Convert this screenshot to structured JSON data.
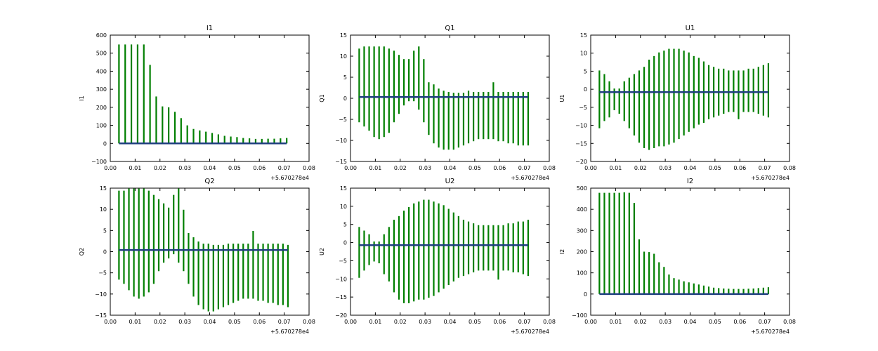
{
  "figure": {
    "background": "#ffffff",
    "bar_color": "#007f00",
    "line_color": "#1f3f7f"
  },
  "chart_data": [
    {
      "type": "errorbar",
      "title": "I1",
      "ylabel": "I1",
      "x_offset_label": "+5.670278e4",
      "xlim": [
        0.0,
        0.08
      ],
      "ylim": [
        -100,
        600
      ],
      "xticks": [
        "0.00",
        "0.01",
        "0.02",
        "0.03",
        "0.04",
        "0.05",
        "0.06",
        "0.07",
        "0.08"
      ],
      "yticks": [
        "−100",
        "0",
        "100",
        "200",
        "300",
        "400",
        "500",
        "600"
      ],
      "ytick_values": [
        -100,
        0,
        100,
        200,
        300,
        400,
        500,
        600
      ],
      "x": [
        0.0035,
        0.006,
        0.0085,
        0.011,
        0.0135,
        0.016,
        0.0185,
        0.021,
        0.0235,
        0.026,
        0.0285,
        0.031,
        0.0335,
        0.036,
        0.0385,
        0.041,
        0.0435,
        0.046,
        0.0485,
        0.051,
        0.0535,
        0.056,
        0.0585,
        0.061,
        0.0635,
        0.066,
        0.0685,
        0.071
      ],
      "mean": 0,
      "err_lo": [
        0,
        0,
        0,
        0,
        0,
        0,
        0,
        0,
        0,
        0,
        0,
        0,
        0,
        0,
        0,
        0,
        0,
        0,
        0,
        0,
        0,
        0,
        0,
        0,
        0,
        0,
        0,
        0
      ],
      "err_hi": [
        548,
        548,
        548,
        548,
        548,
        435,
        260,
        205,
        200,
        175,
        140,
        100,
        80,
        72,
        65,
        58,
        50,
        42,
        38,
        35,
        30,
        28,
        25,
        25,
        26,
        26,
        28,
        30
      ]
    },
    {
      "type": "errorbar",
      "title": "Q1",
      "ylabel": "Q1",
      "x_offset_label": "+5.670278e4",
      "xlim": [
        0.0,
        0.08
      ],
      "ylim": [
        -15,
        15
      ],
      "xticks": [
        "0.00",
        "0.01",
        "0.02",
        "0.03",
        "0.04",
        "0.05",
        "0.06",
        "0.07",
        "0.08"
      ],
      "yticks": [
        "−15",
        "−10",
        "−5",
        "0",
        "5",
        "10",
        "15"
      ],
      "ytick_values": [
        -15,
        -10,
        -5,
        0,
        5,
        10,
        15
      ],
      "x": [
        0.0035,
        0.0055,
        0.0075,
        0.0095,
        0.0115,
        0.0135,
        0.0155,
        0.0175,
        0.0195,
        0.0215,
        0.0235,
        0.0255,
        0.0275,
        0.0295,
        0.0315,
        0.0335,
        0.0355,
        0.0375,
        0.0395,
        0.0415,
        0.0435,
        0.0455,
        0.0475,
        0.0495,
        0.0515,
        0.0535,
        0.0555,
        0.0575,
        0.0595,
        0.0615,
        0.0635,
        0.0655,
        0.0675,
        0.0695,
        0.0715
      ],
      "mean": 0.3,
      "err_lo": [
        -6,
        -7,
        -8,
        -9.5,
        -10,
        -9.5,
        -8.5,
        -6,
        -4,
        -2,
        -1,
        -1,
        -3,
        -6,
        -9,
        -11,
        -12,
        -12.5,
        -12.5,
        -12.5,
        -12,
        -11.5,
        -11,
        -10.5,
        -10,
        -10,
        -10,
        -10,
        -10.5,
        -10.5,
        -11,
        -11,
        -11.5,
        -11.5,
        -11.5
      ],
      "err_hi": [
        11.5,
        12,
        12,
        12,
        12,
        12,
        11.5,
        11,
        10,
        9,
        9,
        11,
        12,
        9,
        3.5,
        3,
        2,
        1.5,
        1.2,
        1,
        1,
        1,
        1.5,
        1.2,
        1.2,
        1.2,
        1.2,
        3.5,
        1.2,
        1.2,
        1.2,
        1.2,
        1.2,
        1.2,
        1.2
      ]
    },
    {
      "type": "errorbar",
      "title": "U1",
      "ylabel": "U1",
      "x_offset_label": "+5.670278e4",
      "xlim": [
        0.0,
        0.08
      ],
      "ylim": [
        -20,
        15
      ],
      "xticks": [
        "0.00",
        "0.01",
        "0.02",
        "0.03",
        "0.04",
        "0.05",
        "0.06",
        "0.07",
        "0.08"
      ],
      "yticks": [
        "−20",
        "−15",
        "−10",
        "−5",
        "0",
        "5",
        "10",
        "15"
      ],
      "ytick_values": [
        -20,
        -15,
        -10,
        -5,
        0,
        5,
        10,
        15
      ],
      "x": [
        0.0035,
        0.0055,
        0.0075,
        0.0095,
        0.0115,
        0.0135,
        0.0155,
        0.0175,
        0.0195,
        0.0215,
        0.0235,
        0.0255,
        0.0275,
        0.0295,
        0.0315,
        0.0335,
        0.0355,
        0.0375,
        0.0395,
        0.0415,
        0.0435,
        0.0455,
        0.0475,
        0.0495,
        0.0515,
        0.0535,
        0.0555,
        0.0575,
        0.0595,
        0.0615,
        0.0635,
        0.0655,
        0.0675,
        0.0695,
        0.0715
      ],
      "mean": -0.8,
      "err_lo": [
        -10,
        -8,
        -7,
        -5,
        -6,
        -8,
        -10,
        -12,
        -14,
        -15.5,
        -16,
        -15.5,
        -15,
        -15,
        -14.5,
        -14,
        -13,
        -12,
        -11,
        -10,
        -9,
        -8.5,
        -7.5,
        -7,
        -6.5,
        -6,
        -5.5,
        -5.5,
        -7.5,
        -5.5,
        -5.5,
        -5.5,
        -6,
        -6.5,
        -7
      ],
      "err_hi": [
        6,
        5,
        3,
        1,
        1,
        3,
        4,
        5,
        6,
        7,
        9,
        10,
        11,
        11.5,
        12,
        12,
        12,
        11.5,
        11,
        10,
        9.5,
        8.5,
        7.5,
        7,
        6.5,
        6.5,
        6,
        6,
        6,
        6,
        6.5,
        6.5,
        7,
        7.5,
        8
      ]
    },
    {
      "type": "errorbar",
      "title": "Q2",
      "ylabel": "Q2",
      "x_offset_label": "+5.670278e4",
      "xlim": [
        0.0,
        0.08
      ],
      "ylim": [
        -15,
        15
      ],
      "xticks": [
        "0.00",
        "0.01",
        "0.02",
        "0.03",
        "0.04",
        "0.05",
        "0.06",
        "0.07",
        "0.08"
      ],
      "yticks": [
        "−15",
        "−10",
        "−5",
        "0",
        "5",
        "10",
        "15"
      ],
      "ytick_values": [
        -15,
        -10,
        -5,
        0,
        5,
        10,
        15
      ],
      "x": [
        0.0035,
        0.0055,
        0.0075,
        0.0095,
        0.0115,
        0.0135,
        0.0155,
        0.0175,
        0.0195,
        0.0215,
        0.0235,
        0.0255,
        0.0275,
        0.0295,
        0.0315,
        0.0335,
        0.0355,
        0.0375,
        0.0395,
        0.0415,
        0.0435,
        0.0455,
        0.0475,
        0.0495,
        0.0515,
        0.0535,
        0.0555,
        0.0575,
        0.0595,
        0.0615,
        0.0635,
        0.0655,
        0.0675,
        0.0695,
        0.0715
      ],
      "mean": 0.4,
      "err_lo": [
        -7,
        -8,
        -9.5,
        -11,
        -11.5,
        -11,
        -10,
        -8,
        -5,
        -3,
        -2,
        -1,
        -3,
        -5,
        -8,
        -11,
        -13,
        -14,
        -14.5,
        -14.5,
        -14,
        -13.5,
        -13,
        -12.5,
        -12,
        -11.5,
        -11.5,
        -11.5,
        -12,
        -12,
        -12.5,
        -12.5,
        -13,
        -13,
        -13.5
      ],
      "err_hi": [
        14,
        14,
        14.5,
        14.5,
        14.5,
        14.5,
        14,
        13,
        12,
        11,
        10,
        13,
        14.5,
        9.5,
        4,
        3,
        2,
        1.5,
        1.5,
        1.2,
        1.2,
        1.2,
        1.5,
        1.5,
        1.5,
        1.5,
        1.5,
        4.5,
        1.5,
        1.5,
        1.5,
        1.5,
        1.5,
        1.5,
        1.2
      ]
    },
    {
      "type": "errorbar",
      "title": "U2",
      "ylabel": "U2",
      "x_offset_label": "+5.670278e4",
      "xlim": [
        0.0,
        0.08
      ],
      "ylim": [
        -20,
        15
      ],
      "xticks": [
        "0.00",
        "0.01",
        "0.02",
        "0.03",
        "0.04",
        "0.05",
        "0.06",
        "0.07",
        "0.08"
      ],
      "yticks": [
        "−20",
        "−15",
        "−10",
        "−5",
        "0",
        "5",
        "10",
        "15"
      ],
      "ytick_values": [
        -20,
        -15,
        -10,
        -5,
        0,
        5,
        10,
        15
      ],
      "x": [
        0.0035,
        0.0055,
        0.0075,
        0.0095,
        0.0115,
        0.0135,
        0.0155,
        0.0175,
        0.0195,
        0.0215,
        0.0235,
        0.0255,
        0.0275,
        0.0295,
        0.0315,
        0.0335,
        0.0355,
        0.0375,
        0.0395,
        0.0415,
        0.0435,
        0.0455,
        0.0475,
        0.0495,
        0.0515,
        0.0535,
        0.0555,
        0.0575,
        0.0595,
        0.0615,
        0.0635,
        0.0655,
        0.0675,
        0.0695,
        0.0715
      ],
      "mean": -0.7,
      "err_lo": [
        -9,
        -7,
        -5.5,
        -4.5,
        -5,
        -8,
        -10,
        -13,
        -15,
        -16,
        -16,
        -15.5,
        -15,
        -15,
        -14.5,
        -14,
        -13,
        -12,
        -11,
        -10,
        -9,
        -8.5,
        -8,
        -7.5,
        -7,
        -7,
        -7,
        -7,
        -9.5,
        -7,
        -7,
        -7.5,
        -7.5,
        -8,
        -8.5
      ],
      "err_hi": [
        5,
        4,
        3,
        1,
        1,
        3,
        5,
        7,
        8,
        9.5,
        10.5,
        11.5,
        12,
        12.5,
        12.5,
        12,
        11.5,
        11,
        10,
        9,
        8,
        7,
        6.5,
        6,
        5.5,
        5.5,
        5.5,
        5.5,
        5.5,
        5.5,
        6,
        6,
        6.5,
        6.5,
        7
      ]
    },
    {
      "type": "errorbar",
      "title": "I2",
      "ylabel": "I2",
      "x_offset_label": "+5.670278e4",
      "xlim": [
        0.0,
        0.08
      ],
      "ylim": [
        -100,
        500
      ],
      "xticks": [
        "0.00",
        "0.01",
        "0.02",
        "0.03",
        "0.04",
        "0.05",
        "0.06",
        "0.07",
        "0.08"
      ],
      "yticks": [
        "−100",
        "0",
        "100",
        "200",
        "300",
        "400",
        "500"
      ],
      "ytick_values": [
        -100,
        0,
        100,
        200,
        300,
        400,
        500
      ],
      "x": [
        0.0035,
        0.0055,
        0.0075,
        0.0095,
        0.0115,
        0.0135,
        0.0155,
        0.0175,
        0.0195,
        0.0215,
        0.0235,
        0.0255,
        0.0275,
        0.0295,
        0.0315,
        0.0335,
        0.0355,
        0.0375,
        0.0395,
        0.0415,
        0.0435,
        0.0455,
        0.0475,
        0.0495,
        0.0515,
        0.0535,
        0.0555,
        0.0575,
        0.0595,
        0.0615,
        0.0635,
        0.0655,
        0.0675,
        0.0695,
        0.0715
      ],
      "mean": 0,
      "err_lo": [
        0,
        0,
        0,
        0,
        0,
        0,
        0,
        0,
        0,
        0,
        0,
        0,
        0,
        0,
        0,
        0,
        0,
        0,
        0,
        0,
        0,
        0,
        0,
        0,
        0,
        0,
        0,
        0,
        0,
        0,
        0,
        0,
        0,
        0,
        0
      ],
      "err_hi": [
        478,
        478,
        478,
        478,
        478,
        480,
        478,
        430,
        258,
        200,
        198,
        190,
        150,
        128,
        92,
        75,
        68,
        60,
        55,
        50,
        45,
        40,
        35,
        30,
        28,
        26,
        25,
        24,
        24,
        24,
        25,
        26,
        28,
        30,
        32
      ]
    }
  ]
}
